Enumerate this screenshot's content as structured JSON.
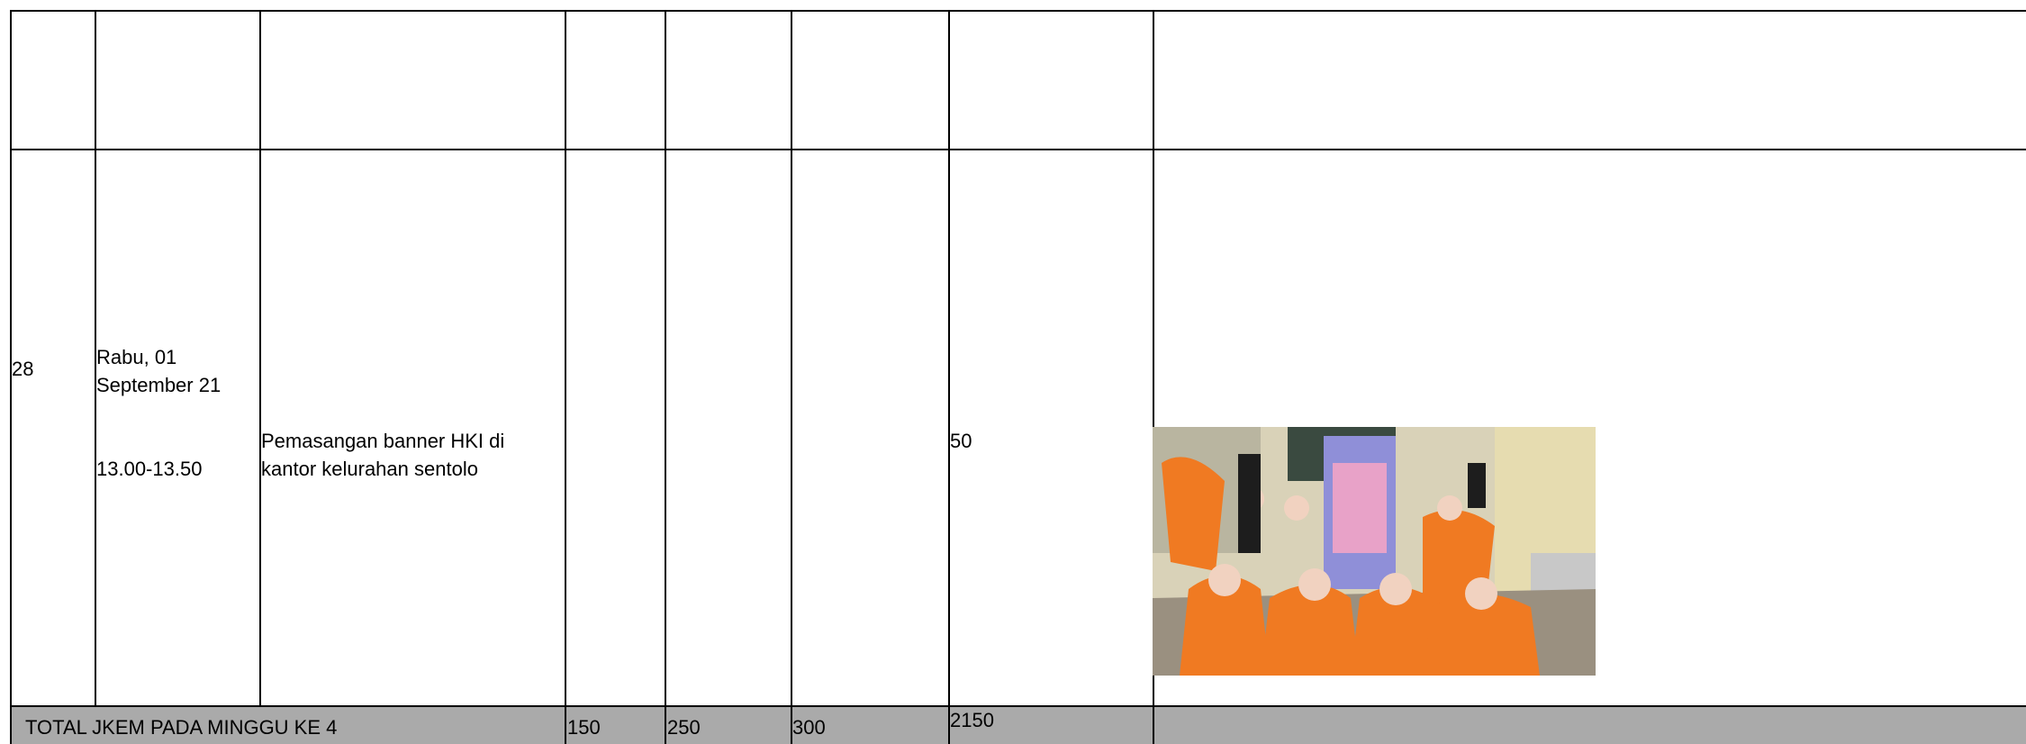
{
  "table": {
    "row": {
      "no": "28",
      "day": "Rabu, 01",
      "date": "September 21",
      "time": "13.00-13.50",
      "activity": "Pemasangan banner HKI di kantor kelurahan sentolo",
      "jkem": 50
    },
    "total": {
      "label": "TOTAL JKEM PADA MINGGU KE 4",
      "values": [
        150,
        250,
        300,
        2150
      ]
    }
  }
}
